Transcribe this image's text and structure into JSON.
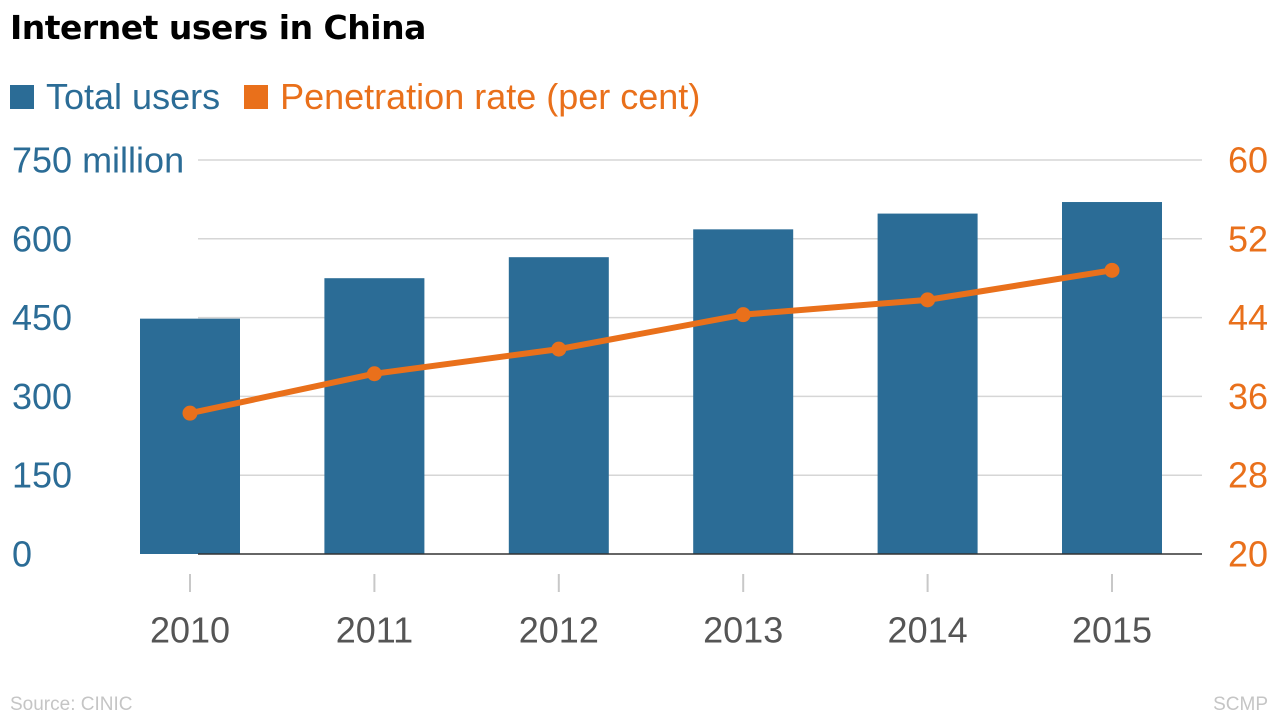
{
  "chart_data": {
    "type": "bar",
    "title": "Internet users in China",
    "categories": [
      "2010",
      "2011",
      "2012",
      "2013",
      "2014",
      "2015"
    ],
    "series": [
      {
        "name": "Total users",
        "type": "bar",
        "axis": "left",
        "color": "#2b6c96",
        "values": [
          448,
          525,
          565,
          618,
          648,
          670
        ]
      },
      {
        "name": "Penetration rate (per cent)",
        "type": "line",
        "axis": "right",
        "color": "#e9701b",
        "values": [
          34.3,
          38.3,
          40.8,
          44.3,
          45.8,
          48.8
        ]
      }
    ],
    "y_left": {
      "ylim": [
        0,
        750
      ],
      "ticks": [
        0,
        150,
        300,
        450,
        600,
        750
      ],
      "tick_labels": [
        "0",
        "150",
        "300",
        "450",
        "600",
        "750 million"
      ],
      "color": "#2b6c96"
    },
    "y_right": {
      "ylim": [
        20,
        60
      ],
      "ticks": [
        20,
        28,
        36,
        44,
        52,
        60
      ],
      "tick_labels": [
        "20",
        "28",
        "36",
        "44",
        "52",
        "60"
      ],
      "color": "#e9701b"
    },
    "grid": true,
    "legend_position": "top-left"
  },
  "footer": {
    "source": "Source: CINIC",
    "credit": "SCMP"
  }
}
